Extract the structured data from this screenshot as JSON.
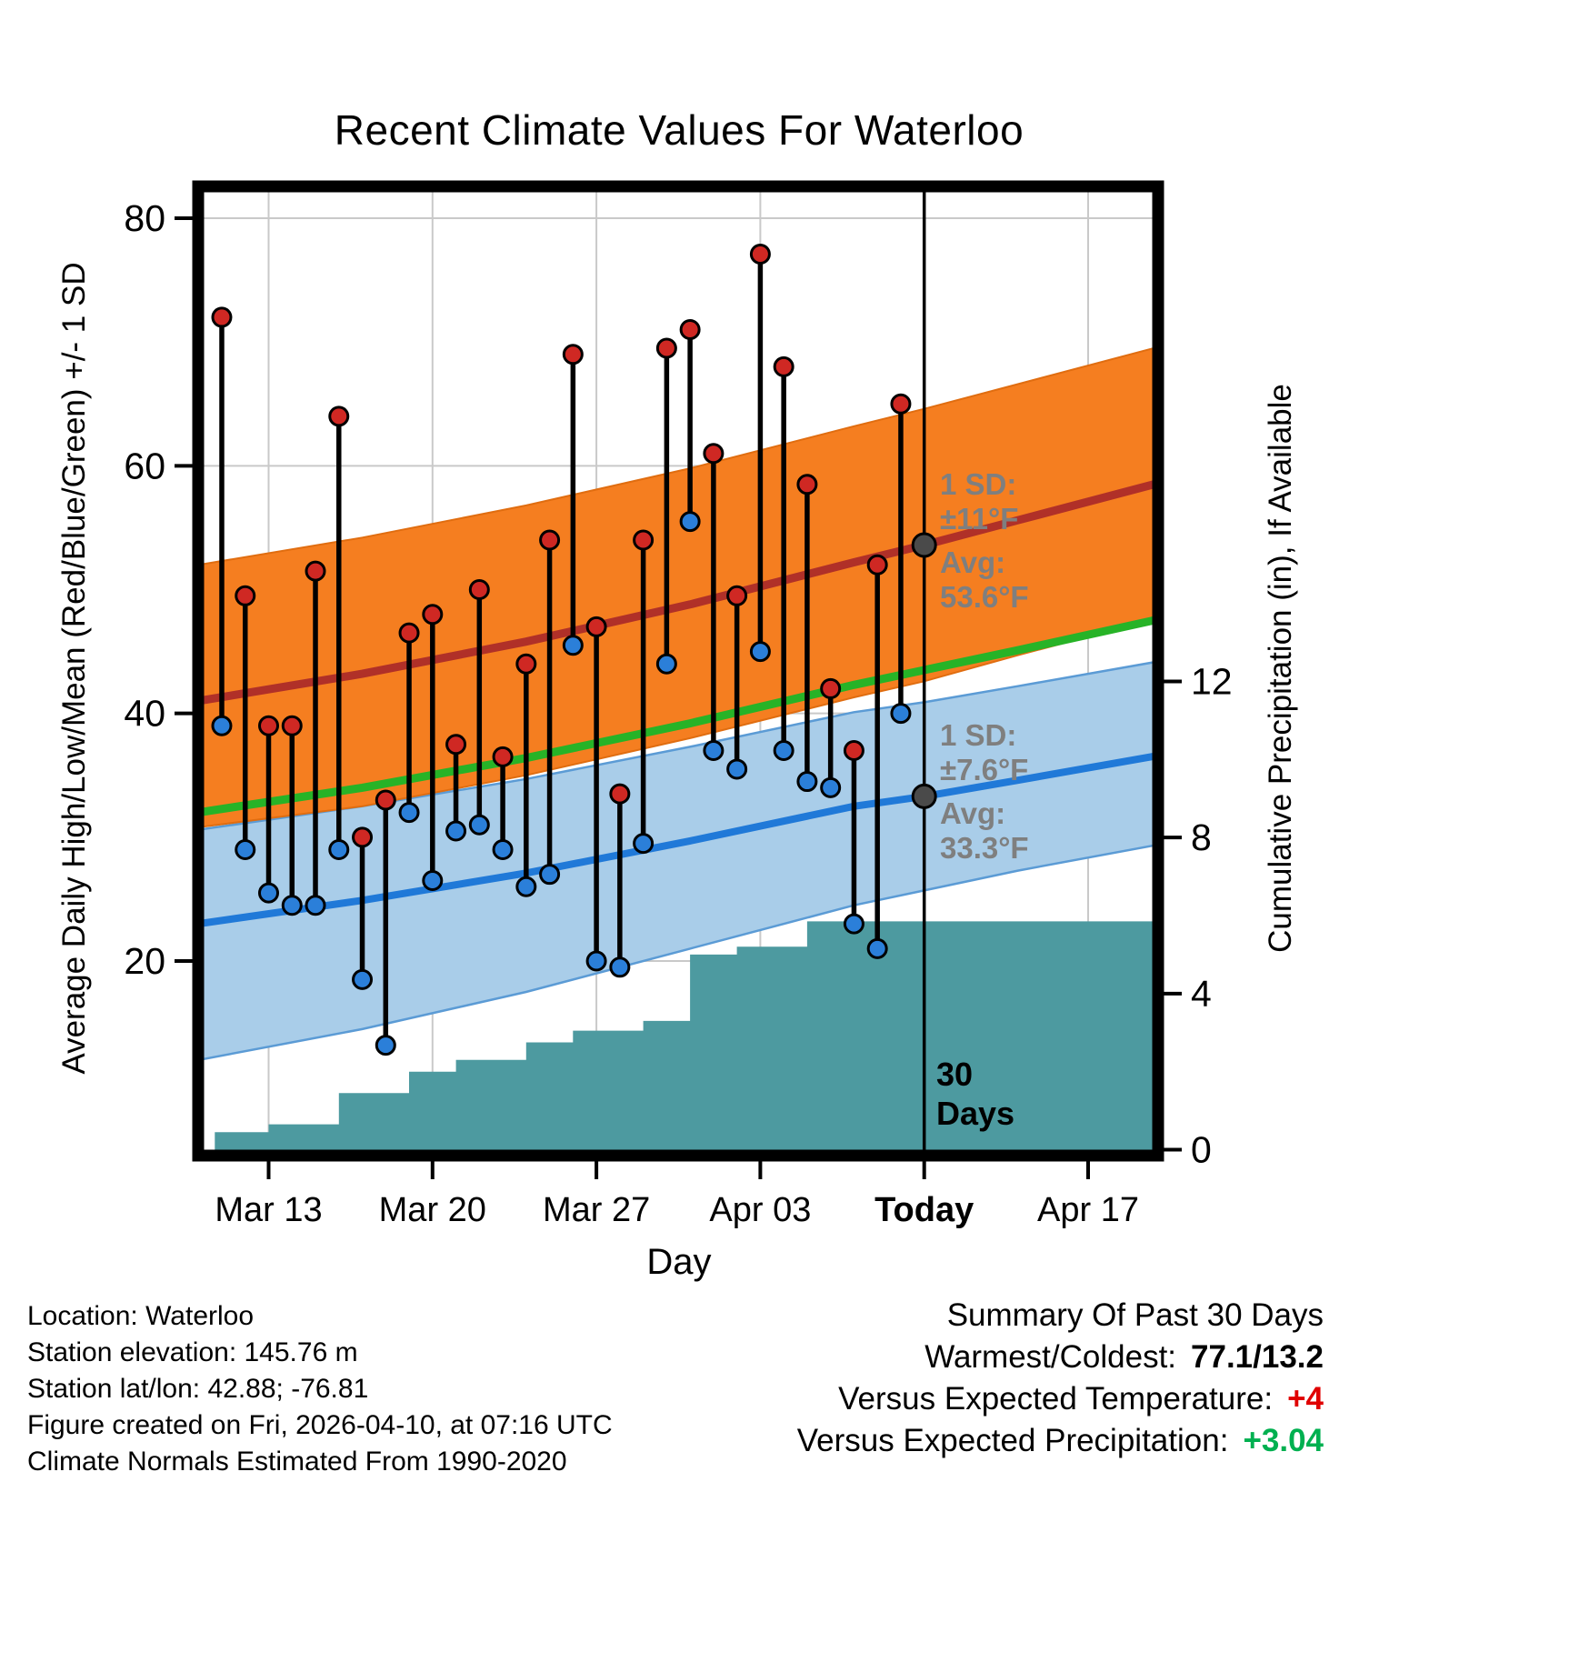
{
  "title": "Recent Climate Values For Waterloo",
  "axes": {
    "x_label": "Day",
    "y_left_label": "Average Daily High/Low/Mean (Red/Blue/Green) +/- 1 SD",
    "y_right_label": "Cumulative Precipitation (in), If Available",
    "x_ticks": [
      {
        "d": 3,
        "label": "Mar 13",
        "bold": false
      },
      {
        "d": 10,
        "label": "Mar 20",
        "bold": false
      },
      {
        "d": 17,
        "label": "Mar 27",
        "bold": false
      },
      {
        "d": 24,
        "label": "Apr 03",
        "bold": false
      },
      {
        "d": 31,
        "label": "Today",
        "bold": true
      },
      {
        "d": 38,
        "label": "Apr 17",
        "bold": false
      }
    ],
    "y_left_ticks": [
      20,
      40,
      60,
      80
    ],
    "y_right_ticks": [
      0,
      4,
      8,
      12
    ]
  },
  "annotations": {
    "high": {
      "sd_label": "1 SD:",
      "sd_value": "±11°F",
      "avg_label": "Avg:",
      "avg_value": "53.6°F",
      "avg_temp": 53.6
    },
    "low": {
      "sd_label": "1 SD:",
      "sd_value": "±7.6°F",
      "avg_label": "Avg:",
      "avg_value": "33.3°F",
      "avg_temp": 33.3
    },
    "window": {
      "line1": "30",
      "line2": "Days"
    }
  },
  "chart_data": {
    "type": "line",
    "title": "Recent Climate Values For Waterloo",
    "xlabel": "Day",
    "ylabel_left": "Average Daily High/Low/Mean (Red/Blue/Green) +/- 1 SD",
    "ylabel_right": "Cumulative Precipitation (in), If Available",
    "x_unit": "day index, Mar 10 = 0",
    "xlim": [
      0,
      41
    ],
    "today_day": 31,
    "temp_ylim": [
      4,
      82.5
    ],
    "precip_ylim": [
      0,
      24.7
    ],
    "grid": true,
    "daily": [
      {
        "date": "Mar 11",
        "d": 1,
        "high": 72,
        "low": 39
      },
      {
        "date": "Mar 12",
        "d": 2,
        "high": 49.5,
        "low": 29
      },
      {
        "date": "Mar 13",
        "d": 3,
        "high": 39,
        "low": 25.5
      },
      {
        "date": "Mar 14",
        "d": 4,
        "high": 39,
        "low": 24.5
      },
      {
        "date": "Mar 15",
        "d": 5,
        "high": 51.5,
        "low": 24.5
      },
      {
        "date": "Mar 16",
        "d": 6,
        "high": 64,
        "low": 29
      },
      {
        "date": "Mar 17",
        "d": 7,
        "high": 30,
        "low": 18.5
      },
      {
        "date": "Mar 18",
        "d": 8,
        "high": 33,
        "low": 13.2
      },
      {
        "date": "Mar 19",
        "d": 9,
        "high": 46.5,
        "low": 32
      },
      {
        "date": "Mar 20",
        "d": 10,
        "high": 48,
        "low": 26.5
      },
      {
        "date": "Mar 21",
        "d": 11,
        "high": 37.5,
        "low": 30.5
      },
      {
        "date": "Mar 22",
        "d": 12,
        "high": 50,
        "low": 31
      },
      {
        "date": "Mar 23",
        "d": 13,
        "high": 36.5,
        "low": 29
      },
      {
        "date": "Mar 24",
        "d": 14,
        "high": 44,
        "low": 26
      },
      {
        "date": "Mar 25",
        "d": 15,
        "high": 54,
        "low": 27
      },
      {
        "date": "Mar 26",
        "d": 16,
        "high": 69,
        "low": 45.5
      },
      {
        "date": "Mar 27",
        "d": 17,
        "high": 47,
        "low": 20
      },
      {
        "date": "Mar 28",
        "d": 18,
        "high": 33.5,
        "low": 19.5
      },
      {
        "date": "Mar 29",
        "d": 19,
        "high": 54,
        "low": 29.5
      },
      {
        "date": "Mar 30",
        "d": 20,
        "high": 69.5,
        "low": 44
      },
      {
        "date": "Mar 31",
        "d": 21,
        "high": 71,
        "low": 55.5
      },
      {
        "date": "Apr 01",
        "d": 22,
        "high": 61,
        "low": 37
      },
      {
        "date": "Apr 02",
        "d": 23,
        "high": 49.5,
        "low": 35.5
      },
      {
        "date": "Apr 03",
        "d": 24,
        "high": 77.1,
        "low": 45
      },
      {
        "date": "Apr 04",
        "d": 25,
        "high": 68,
        "low": 37
      },
      {
        "date": "Apr 05",
        "d": 26,
        "high": 58.5,
        "low": 34.5
      },
      {
        "date": "Apr 06",
        "d": 27,
        "high": 42,
        "low": 34
      },
      {
        "date": "Apr 07",
        "d": 28,
        "high": 37,
        "low": 23
      },
      {
        "date": "Apr 08",
        "d": 29,
        "high": 52,
        "low": 21
      },
      {
        "date": "Apr 09",
        "d": 30,
        "high": 65,
        "low": 40
      }
    ],
    "high_band": {
      "label": "Average daily high ± 1 SD",
      "sd": 11,
      "d": [
        0,
        7,
        14,
        21,
        28,
        31,
        35,
        41
      ],
      "center": [
        41,
        43.2,
        45.8,
        48.8,
        52.2,
        53.6,
        55.6,
        58.6
      ],
      "upper": [
        52,
        54.2,
        56.8,
        59.8,
        63.2,
        64.6,
        66.6,
        69.6
      ],
      "lower": [
        30.8,
        32.5,
        35,
        38,
        41.3,
        42.6,
        44.7,
        47.7
      ]
    },
    "low_band": {
      "label": "Average daily low ± 1 SD",
      "sd": 7.6,
      "d": [
        0,
        7,
        14,
        21,
        28,
        31,
        35,
        41
      ],
      "center": [
        23,
        24.9,
        27.1,
        29.7,
        32.5,
        33.3,
        34.6,
        36.6
      ],
      "upper": [
        30.6,
        32.5,
        34.7,
        37.3,
        40.1,
        40.9,
        42.2,
        44.2
      ],
      "lower": [
        12,
        14.5,
        17.5,
        21,
        24.5,
        25.7,
        27.3,
        29.4
      ]
    },
    "mean_line": {
      "label": "Average daily mean",
      "d": [
        0,
        7,
        14,
        21,
        28,
        31,
        35,
        41
      ],
      "v": [
        32,
        34,
        36.4,
        39.2,
        42.3,
        43.5,
        45.1,
        47.6
      ]
    },
    "precip_steps": [
      {
        "d": 0.7,
        "v": 0.45
      },
      {
        "d": 3,
        "v": 0.65
      },
      {
        "d": 6,
        "v": 1.45
      },
      {
        "d": 9,
        "v": 2.0
      },
      {
        "d": 11,
        "v": 2.3
      },
      {
        "d": 14,
        "v": 2.75
      },
      {
        "d": 16,
        "v": 3.05
      },
      {
        "d": 19,
        "v": 3.3
      },
      {
        "d": 21,
        "v": 5.0
      },
      {
        "d": 23,
        "v": 5.2
      },
      {
        "d": 26,
        "v": 5.85
      },
      {
        "d": 41,
        "v": 5.85
      }
    ],
    "colors": {
      "high_band": "#f57e20",
      "high_band_edge": "#e06d10",
      "high_line": "#b03028",
      "low_band": "#a9cde9",
      "low_band_edge": "#5b9bd5",
      "low_line": "#2079d8",
      "mean_line": "#27b327",
      "precip_fill": "#4d9aa0",
      "high_dot": "#cf2823",
      "low_dot": "#2b7fd9",
      "stem": "#000000",
      "grid": "#c9c9c9",
      "border": "#000000",
      "today_line": "#000000",
      "avg_marker": "#4a4a4a",
      "annotation_gray": "#7f7f7f"
    }
  },
  "footer_left": [
    "Location: Waterloo",
    "Station elevation: 145.76 m",
    "Station lat/lon: 42.88; -76.81",
    "Figure created on Fri, 2026-04-10, at 07:16 UTC",
    "Climate Normals Estimated From 1990-2020"
  ],
  "summary": {
    "title": "Summary Of Past 30 Days",
    "rows": [
      {
        "label": "Warmest/Coldest:",
        "value": "77.1/13.2",
        "color": "#000000"
      },
      {
        "label": "Versus Expected Temperature:",
        "value": "+4",
        "color": "#e00000"
      },
      {
        "label": "Versus Expected Precipitation:",
        "value": "+3.04",
        "color": "#00b050"
      }
    ]
  }
}
